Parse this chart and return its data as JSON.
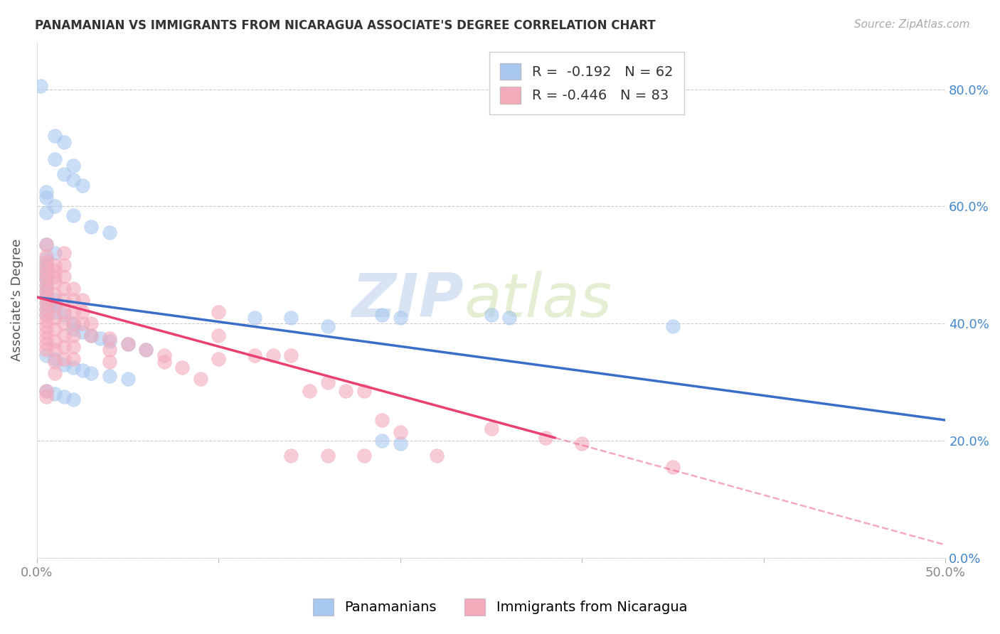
{
  "title": "PANAMANIAN VS IMMIGRANTS FROM NICARAGUA ASSOCIATE'S DEGREE CORRELATION CHART",
  "source": "Source: ZipAtlas.com",
  "xlabel_ticks": [
    "0.0%",
    "",
    "",
    "",
    "",
    "50.0%"
  ],
  "xlim": [
    0.0,
    0.5
  ],
  "ylim": [
    0.0,
    0.88
  ],
  "yticks": [
    0.0,
    0.2,
    0.4,
    0.6,
    0.8
  ],
  "ytick_labels": [
    "0.0%",
    "20.0%",
    "40.0%",
    "60.0%",
    "80.0%"
  ],
  "ylabel_label": "Associate's Degree",
  "legend_label_1": "Panamanians",
  "legend_label_2": "Immigrants from Nicaragua",
  "R1": -0.192,
  "N1": 62,
  "R2": -0.446,
  "N2": 83,
  "color_blue": "#A8C8F0",
  "color_pink": "#F4AABB",
  "line_color_blue": "#3A6EC8",
  "line_color_pink": "#E84070",
  "watermark_zip": "ZIP",
  "watermark_atlas": "atlas",
  "background_color": "#FFFFFF",
  "grid_color": "#CCCCCC",
  "blue_line": [
    [
      0.0,
      0.445
    ],
    [
      0.5,
      0.235
    ]
  ],
  "pink_line_solid": [
    [
      0.0,
      0.445
    ],
    [
      0.285,
      0.205
    ]
  ],
  "pink_line_dash": [
    [
      0.285,
      0.205
    ],
    [
      0.5,
      0.022
    ]
  ],
  "scatter_blue": [
    [
      0.002,
      0.805
    ],
    [
      0.01,
      0.72
    ],
    [
      0.015,
      0.71
    ],
    [
      0.01,
      0.68
    ],
    [
      0.02,
      0.67
    ],
    [
      0.015,
      0.655
    ],
    [
      0.02,
      0.645
    ],
    [
      0.025,
      0.635
    ],
    [
      0.005,
      0.625
    ],
    [
      0.005,
      0.615
    ],
    [
      0.01,
      0.6
    ],
    [
      0.005,
      0.59
    ],
    [
      0.02,
      0.585
    ],
    [
      0.03,
      0.565
    ],
    [
      0.04,
      0.555
    ],
    [
      0.005,
      0.535
    ],
    [
      0.01,
      0.52
    ],
    [
      0.005,
      0.51
    ],
    [
      0.005,
      0.5
    ],
    [
      0.005,
      0.49
    ],
    [
      0.005,
      0.48
    ],
    [
      0.005,
      0.475
    ],
    [
      0.005,
      0.465
    ],
    [
      0.005,
      0.455
    ],
    [
      0.005,
      0.445
    ],
    [
      0.005,
      0.435
    ],
    [
      0.005,
      0.425
    ],
    [
      0.005,
      0.415
    ],
    [
      0.01,
      0.44
    ],
    [
      0.01,
      0.43
    ],
    [
      0.01,
      0.42
    ],
    [
      0.015,
      0.415
    ],
    [
      0.02,
      0.4
    ],
    [
      0.02,
      0.39
    ],
    [
      0.025,
      0.385
    ],
    [
      0.03,
      0.38
    ],
    [
      0.035,
      0.375
    ],
    [
      0.04,
      0.37
    ],
    [
      0.05,
      0.365
    ],
    [
      0.06,
      0.355
    ],
    [
      0.005,
      0.345
    ],
    [
      0.01,
      0.34
    ],
    [
      0.015,
      0.33
    ],
    [
      0.02,
      0.325
    ],
    [
      0.025,
      0.32
    ],
    [
      0.03,
      0.315
    ],
    [
      0.04,
      0.31
    ],
    [
      0.05,
      0.305
    ],
    [
      0.005,
      0.285
    ],
    [
      0.01,
      0.28
    ],
    [
      0.015,
      0.275
    ],
    [
      0.02,
      0.27
    ],
    [
      0.12,
      0.41
    ],
    [
      0.14,
      0.41
    ],
    [
      0.16,
      0.395
    ],
    [
      0.19,
      0.415
    ],
    [
      0.2,
      0.41
    ],
    [
      0.25,
      0.415
    ],
    [
      0.26,
      0.41
    ],
    [
      0.35,
      0.395
    ],
    [
      0.19,
      0.2
    ],
    [
      0.2,
      0.195
    ]
  ],
  "scatter_pink": [
    [
      0.005,
      0.535
    ],
    [
      0.005,
      0.515
    ],
    [
      0.005,
      0.505
    ],
    [
      0.005,
      0.495
    ],
    [
      0.005,
      0.485
    ],
    [
      0.005,
      0.475
    ],
    [
      0.005,
      0.465
    ],
    [
      0.005,
      0.455
    ],
    [
      0.005,
      0.445
    ],
    [
      0.005,
      0.435
    ],
    [
      0.005,
      0.425
    ],
    [
      0.005,
      0.415
    ],
    [
      0.005,
      0.405
    ],
    [
      0.005,
      0.395
    ],
    [
      0.005,
      0.385
    ],
    [
      0.005,
      0.375
    ],
    [
      0.005,
      0.365
    ],
    [
      0.005,
      0.355
    ],
    [
      0.005,
      0.285
    ],
    [
      0.005,
      0.275
    ],
    [
      0.01,
      0.5
    ],
    [
      0.01,
      0.49
    ],
    [
      0.01,
      0.48
    ],
    [
      0.01,
      0.47
    ],
    [
      0.01,
      0.45
    ],
    [
      0.01,
      0.43
    ],
    [
      0.01,
      0.41
    ],
    [
      0.01,
      0.39
    ],
    [
      0.01,
      0.37
    ],
    [
      0.01,
      0.355
    ],
    [
      0.01,
      0.335
    ],
    [
      0.01,
      0.315
    ],
    [
      0.015,
      0.52
    ],
    [
      0.015,
      0.5
    ],
    [
      0.015,
      0.48
    ],
    [
      0.015,
      0.46
    ],
    [
      0.015,
      0.44
    ],
    [
      0.015,
      0.42
    ],
    [
      0.015,
      0.4
    ],
    [
      0.015,
      0.38
    ],
    [
      0.015,
      0.36
    ],
    [
      0.015,
      0.34
    ],
    [
      0.02,
      0.46
    ],
    [
      0.02,
      0.44
    ],
    [
      0.02,
      0.42
    ],
    [
      0.02,
      0.4
    ],
    [
      0.02,
      0.38
    ],
    [
      0.02,
      0.36
    ],
    [
      0.02,
      0.34
    ],
    [
      0.025,
      0.44
    ],
    [
      0.025,
      0.42
    ],
    [
      0.025,
      0.4
    ],
    [
      0.03,
      0.4
    ],
    [
      0.03,
      0.38
    ],
    [
      0.04,
      0.375
    ],
    [
      0.04,
      0.355
    ],
    [
      0.04,
      0.335
    ],
    [
      0.05,
      0.365
    ],
    [
      0.06,
      0.355
    ],
    [
      0.07,
      0.345
    ],
    [
      0.07,
      0.335
    ],
    [
      0.08,
      0.325
    ],
    [
      0.09,
      0.305
    ],
    [
      0.1,
      0.42
    ],
    [
      0.1,
      0.38
    ],
    [
      0.1,
      0.34
    ],
    [
      0.12,
      0.345
    ],
    [
      0.13,
      0.345
    ],
    [
      0.14,
      0.345
    ],
    [
      0.15,
      0.285
    ],
    [
      0.16,
      0.3
    ],
    [
      0.17,
      0.285
    ],
    [
      0.18,
      0.285
    ],
    [
      0.19,
      0.235
    ],
    [
      0.2,
      0.215
    ],
    [
      0.22,
      0.175
    ],
    [
      0.25,
      0.22
    ],
    [
      0.28,
      0.205
    ],
    [
      0.3,
      0.195
    ],
    [
      0.35,
      0.155
    ],
    [
      0.14,
      0.175
    ],
    [
      0.16,
      0.175
    ],
    [
      0.18,
      0.175
    ]
  ]
}
